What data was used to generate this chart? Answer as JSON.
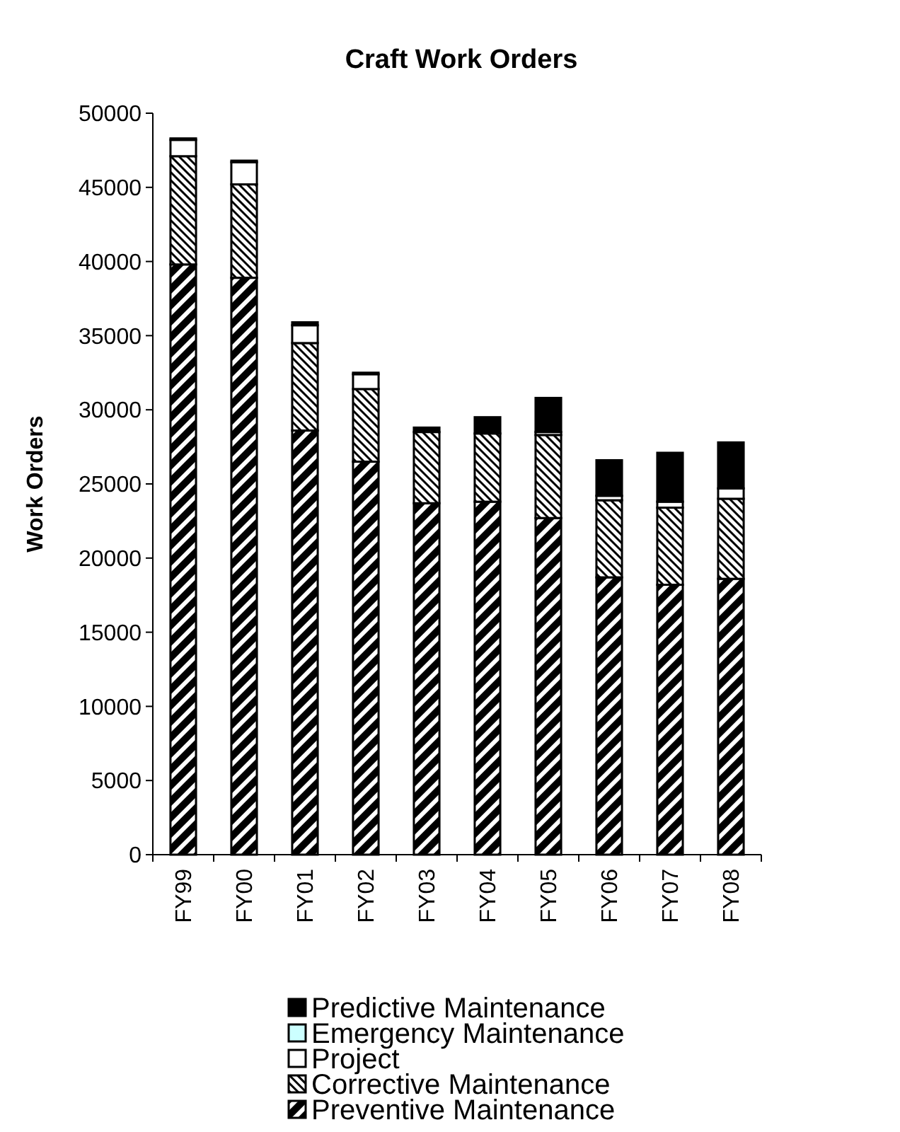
{
  "chart_data": {
    "type": "bar",
    "title": "Craft Work Orders",
    "ylabel": "Work Orders",
    "stacked": true,
    "legend": "bottom",
    "grid": false,
    "categories": [
      "FY99",
      "FY00",
      "FY01",
      "FY02",
      "FY03",
      "FY04",
      "FY05",
      "FY06",
      "FY07",
      "FY08"
    ],
    "ylim": [
      0,
      50000
    ],
    "yticks": [
      0,
      5000,
      10000,
      15000,
      20000,
      25000,
      30000,
      35000,
      40000,
      45000,
      50000
    ],
    "series": [
      {
        "name": "Preventive Maintenance",
        "color": "#000000",
        "values": [
          39800,
          38900,
          28600,
          26500,
          23700,
          23800,
          22700,
          18700,
          18200,
          18600
        ]
      },
      {
        "name": "Corrective Maintenance",
        "color": "#000000",
        "values": [
          7300,
          6300,
          5900,
          4900,
          4800,
          4600,
          5600,
          5200,
          5200,
          5400
        ]
      },
      {
        "name": "Project",
        "color": "#ffffff",
        "values": [
          1100,
          1500,
          1200,
          1000,
          null,
          null,
          200,
          300,
          400,
          700
        ]
      },
      {
        "name": "Emergency Maintenance",
        "color": "#ccffff",
        "values": [
          0,
          0,
          0,
          0,
          0,
          0,
          0,
          0,
          0,
          0
        ]
      },
      {
        "name": "Predictive Maintenance",
        "color": "#000000",
        "values": [
          100,
          100,
          200,
          100,
          300,
          1100,
          2300,
          2400,
          3300,
          3100
        ]
      }
    ]
  }
}
